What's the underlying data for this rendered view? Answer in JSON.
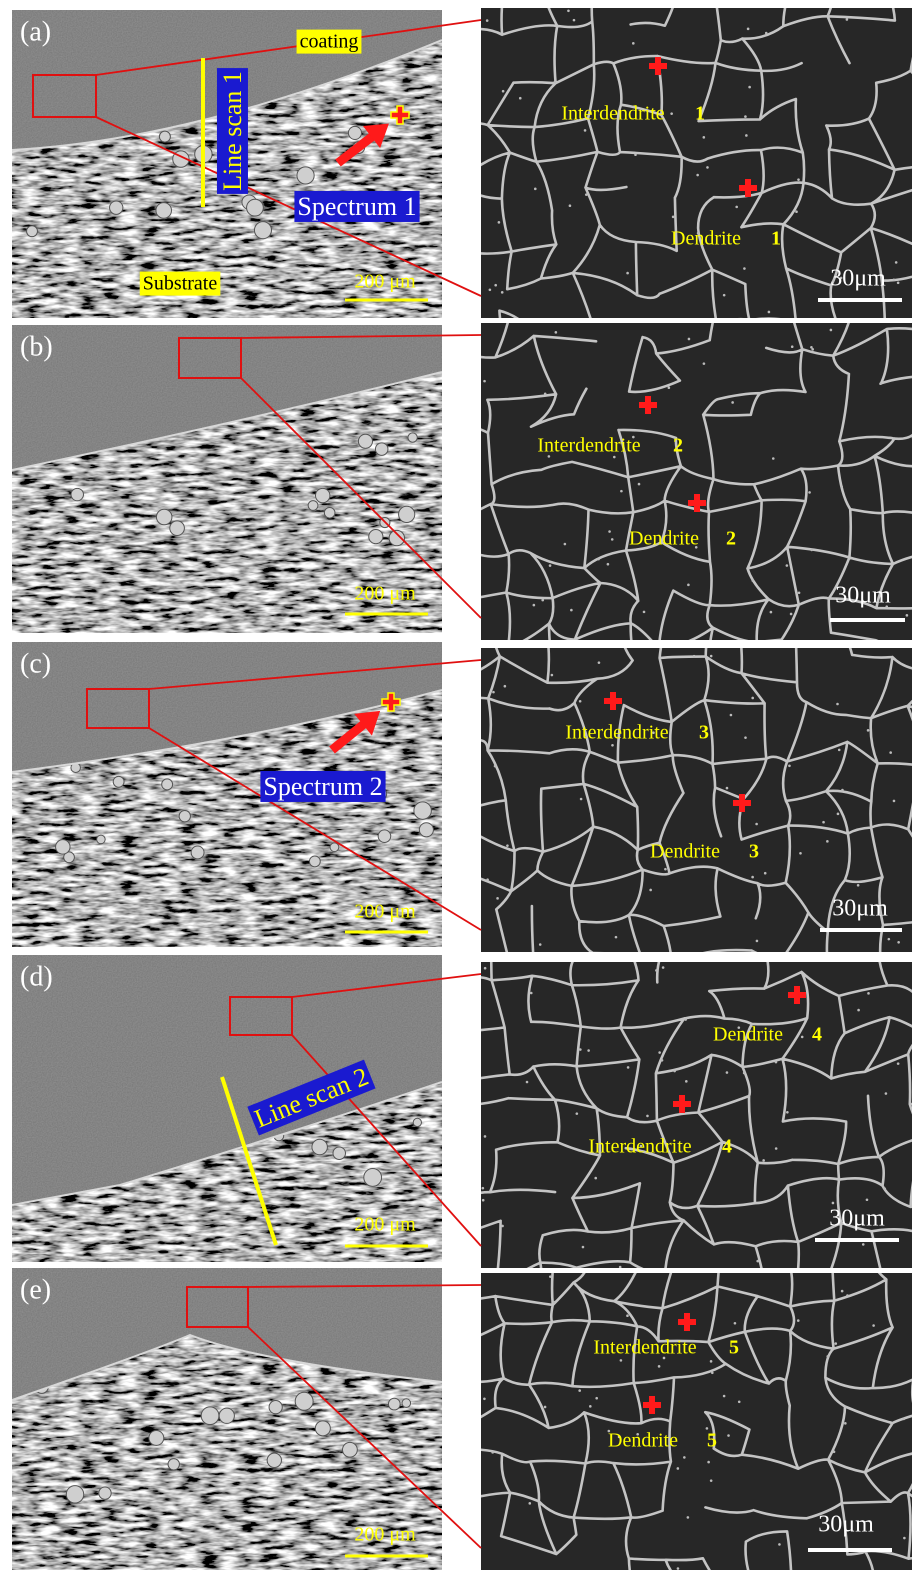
{
  "panels": [
    {
      "label": "(a)",
      "tags": [
        "coating",
        "Line scan 1",
        "Spectrum 1",
        "Substrate"
      ],
      "scale_overview": "200 μm",
      "scale_zoom": "30μm",
      "points": [
        {
          "name": "Interdendrite",
          "number": "1"
        },
        {
          "name": "Dendrite",
          "number": "1"
        }
      ]
    },
    {
      "label": "(b)",
      "tags": [],
      "scale_overview": "200 μm",
      "scale_zoom": "30μm",
      "points": [
        {
          "name": "Interdendrite",
          "number": "2"
        },
        {
          "name": "Dendrite",
          "number": "2"
        }
      ]
    },
    {
      "label": "(c)",
      "tags": [
        "Spectrum 2"
      ],
      "scale_overview": "200 μm",
      "scale_zoom": "30μm",
      "points": [
        {
          "name": "Interdendrite",
          "number": "3"
        },
        {
          "name": "Dendrite",
          "number": "3"
        }
      ]
    },
    {
      "label": "(d)",
      "tags": [
        "Line scan 2"
      ],
      "scale_overview": "200 μm",
      "scale_zoom": "30μm",
      "points": [
        {
          "name": "Dendrite",
          "number": "4"
        },
        {
          "name": "Interdendrite",
          "number": "4"
        }
      ]
    },
    {
      "label": "(e)",
      "tags": [],
      "scale_overview": "200 μm",
      "scale_zoom": "30μm",
      "points": [
        {
          "name": "Interdendrite",
          "number": "5"
        },
        {
          "name": "Dendrite",
          "number": "5"
        }
      ]
    }
  ]
}
